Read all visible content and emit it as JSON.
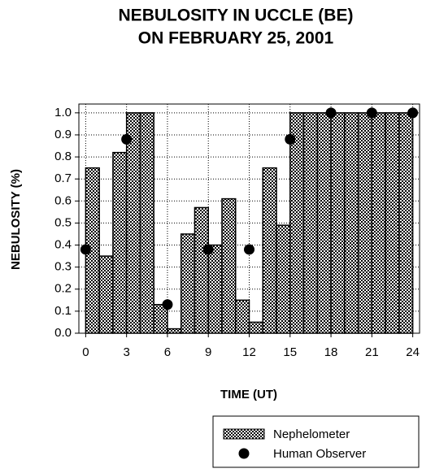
{
  "chart_data": {
    "type": "histogram",
    "title": [
      "NEBULOSITY IN UCCLE (BE)",
      "ON FEBRUARY 25, 2001"
    ],
    "x_label": "TIME (UT)",
    "y_label": "NEBULOSITY (%)",
    "xlim": [
      -0.5,
      24.5
    ],
    "ylim": [
      0,
      1.04
    ],
    "xticks": [
      0,
      3,
      6,
      9,
      12,
      15,
      18,
      21,
      24
    ],
    "yticks": [
      {
        "value": 0,
        "label": "0.0"
      },
      0.1,
      0.2,
      0.3,
      0.4,
      0.5,
      0.6,
      0.7,
      0.8,
      0.9,
      {
        "value": 1,
        "label": "1.0"
      }
    ],
    "grid": true,
    "series": [
      {
        "name": "Nephelometer",
        "color": "#000000",
        "bins": [
          0,
          1,
          2,
          3,
          4,
          5,
          6,
          7,
          8,
          9,
          10,
          11,
          12,
          13,
          14,
          15,
          16,
          17,
          18,
          19,
          20,
          21,
          22,
          23,
          24
        ],
        "values": [
          0.75,
          0.35,
          0.82,
          1.0,
          1.0,
          0.13,
          0.02,
          0.45,
          0.57,
          0.4,
          0.61,
          0.15,
          0.05,
          0.75,
          0.49,
          1.0,
          1.0,
          1.0,
          1.0,
          1.0,
          1.0,
          1.0,
          1.0,
          1.0
        ]
      },
      {
        "name": "Human Observer",
        "color": "#000000",
        "x": [
          0,
          3,
          6,
          9,
          12,
          15,
          18,
          21,
          24
        ],
        "values": [
          0.38,
          0.88,
          0.13,
          0.38,
          0.38,
          0.88,
          1.0,
          1.0,
          1.0
        ]
      }
    ]
  }
}
